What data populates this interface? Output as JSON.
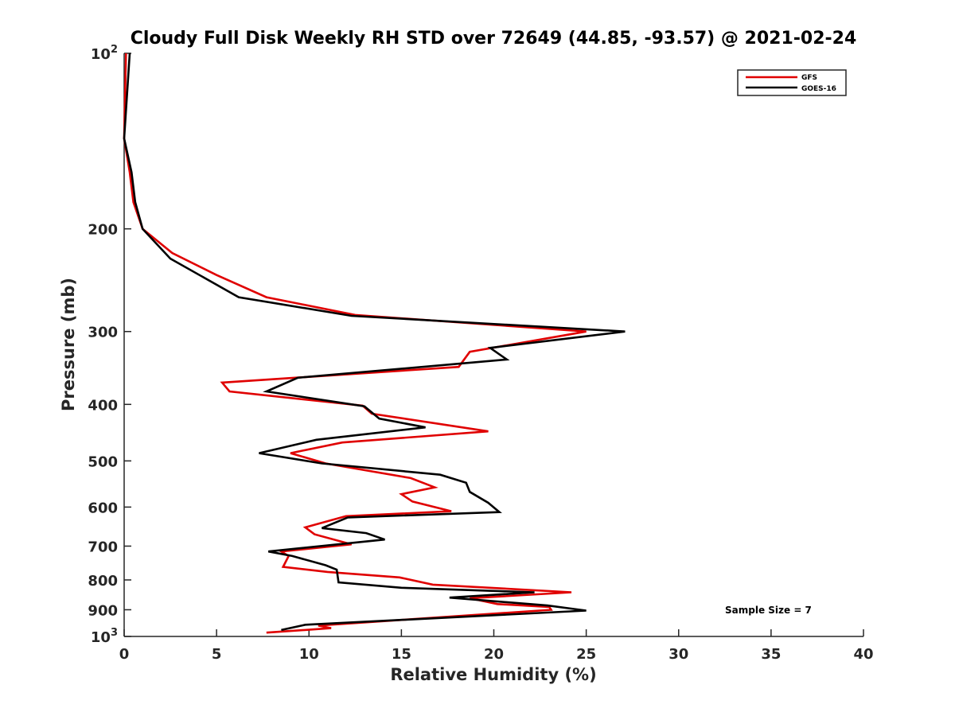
{
  "chart_data": {
    "type": "line",
    "title": "Cloudy Full Disk Weekly RH STD over 72649 (44.85, -93.57) @ 2021-02-24",
    "xlabel": "Relative Humidity (%)",
    "ylabel": "Pressure (mb)",
    "xlim": [
      0,
      40
    ],
    "ylim": [
      100,
      1000
    ],
    "yscale": "log",
    "y_reversed": true,
    "grid": false,
    "legend_position": "top-right",
    "x_ticks": [
      "0",
      "5",
      "10",
      "15",
      "20",
      "25",
      "30",
      "35",
      "40"
    ],
    "y_ticks": [
      {
        "value": 100,
        "base": "10",
        "exp": "2"
      },
      {
        "value": 200,
        "label": "200"
      },
      {
        "value": 300,
        "label": "300"
      },
      {
        "value": 400,
        "label": "400"
      },
      {
        "value": 500,
        "label": "500"
      },
      {
        "value": 600,
        "label": "600"
      },
      {
        "value": 700,
        "label": "700"
      },
      {
        "value": 800,
        "label": "800"
      },
      {
        "value": 900,
        "label": "900"
      },
      {
        "value": 1000,
        "base": "10",
        "exp": "3"
      }
    ],
    "annotation": "Sample Size = 7",
    "series": [
      {
        "name": "GFS",
        "color": "#e00000",
        "points": [
          [
            0.1,
            100
          ],
          [
            0.0,
            140
          ],
          [
            0.3,
            160
          ],
          [
            0.5,
            180
          ],
          [
            1.0,
            200
          ],
          [
            2.6,
            220
          ],
          [
            5.0,
            240
          ],
          [
            7.7,
            262
          ],
          [
            12.5,
            281
          ],
          [
            25.0,
            300
          ],
          [
            18.7,
            325
          ],
          [
            18.1,
            345
          ],
          [
            5.3,
            367
          ],
          [
            5.7,
            380
          ],
          [
            12.9,
            402
          ],
          [
            13.4,
            415
          ],
          [
            19.7,
            445
          ],
          [
            11.8,
            465
          ],
          [
            9.0,
            485
          ],
          [
            10.9,
            505
          ],
          [
            15.5,
            535
          ],
          [
            16.8,
            555
          ],
          [
            15.0,
            570
          ],
          [
            15.6,
            587
          ],
          [
            17.7,
            610
          ],
          [
            12.0,
            622
          ],
          [
            9.8,
            650
          ],
          [
            10.3,
            668
          ],
          [
            12.3,
            695
          ],
          [
            8.5,
            715
          ],
          [
            8.9,
            728
          ],
          [
            8.6,
            760
          ],
          [
            11.0,
            775
          ],
          [
            14.9,
            792
          ],
          [
            16.7,
            815
          ],
          [
            24.2,
            840
          ],
          [
            18.7,
            860
          ],
          [
            20.2,
            880
          ],
          [
            23.0,
            890
          ],
          [
            23.1,
            900
          ],
          [
            10.5,
            958
          ],
          [
            11.2,
            968
          ],
          [
            7.7,
            985
          ]
        ]
      },
      {
        "name": "GOES-16",
        "color": "#000000",
        "points": [
          [
            0.3,
            100
          ],
          [
            0.0,
            140
          ],
          [
            0.4,
            160
          ],
          [
            0.6,
            180
          ],
          [
            1.0,
            200
          ],
          [
            2.5,
            225
          ],
          [
            6.2,
            262
          ],
          [
            12.3,
            282
          ],
          [
            27.1,
            300
          ],
          [
            19.8,
            320
          ],
          [
            20.7,
            335
          ],
          [
            9.4,
            360
          ],
          [
            7.7,
            380
          ],
          [
            13.0,
            403
          ],
          [
            13.8,
            423
          ],
          [
            16.3,
            438
          ],
          [
            10.4,
            460
          ],
          [
            7.3,
            485
          ],
          [
            10.7,
            505
          ],
          [
            17.1,
            528
          ],
          [
            18.5,
            545
          ],
          [
            18.7,
            565
          ],
          [
            19.7,
            590
          ],
          [
            20.3,
            612
          ],
          [
            12.1,
            625
          ],
          [
            10.7,
            652
          ],
          [
            13.1,
            665
          ],
          [
            14.1,
            682
          ],
          [
            7.8,
            715
          ],
          [
            9.1,
            728
          ],
          [
            10.9,
            755
          ],
          [
            11.5,
            768
          ],
          [
            11.6,
            808
          ],
          [
            15.0,
            825
          ],
          [
            22.2,
            840
          ],
          [
            17.6,
            858
          ],
          [
            22.9,
            885
          ],
          [
            25.0,
            903
          ],
          [
            9.8,
            955
          ],
          [
            8.5,
            975
          ]
        ]
      }
    ]
  }
}
